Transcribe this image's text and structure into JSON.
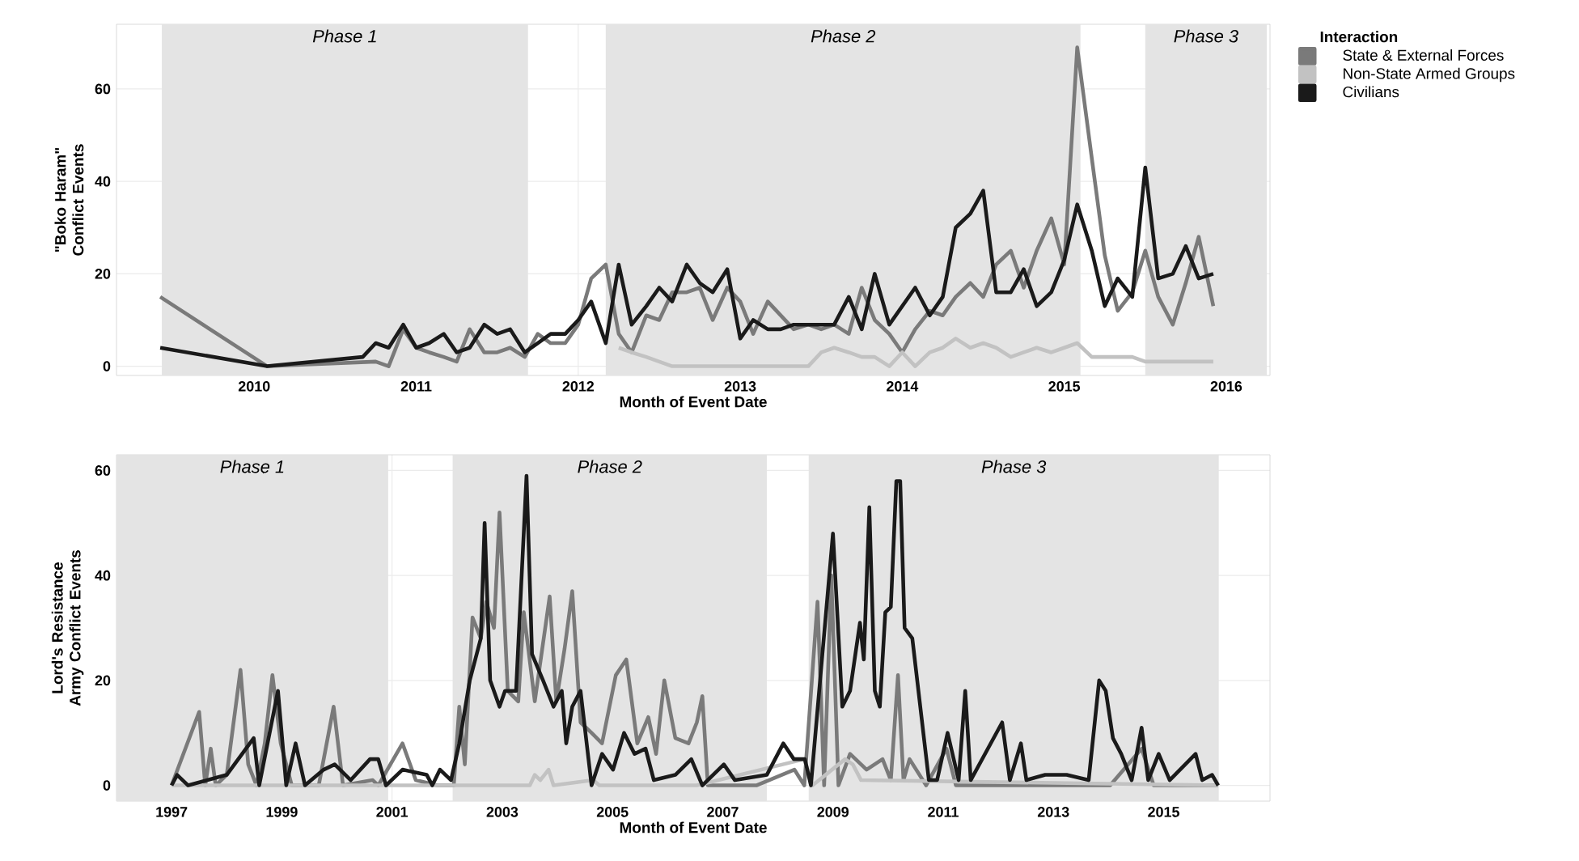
{
  "chart_data": [
    {
      "type": "line",
      "xlabel": "Month of Event Date",
      "ylabel": "\"Boko Haram\" Conflict Events",
      "legend_title": "Interaction",
      "legend": "right",
      "grid": true,
      "xlim": [
        2009.15,
        2016.27
      ],
      "ylim": [
        -2,
        74
      ],
      "xticks": [
        2010,
        2011,
        2012,
        2013,
        2014,
        2015,
        2016
      ],
      "yticks": [
        0,
        20,
        40,
        60
      ],
      "bands": [
        {
          "axis": "x",
          "from": 2009.43,
          "to": 2011.69,
          "label": "Phase 1",
          "color": "#e4e4e4"
        },
        {
          "axis": "x",
          "from": 2012.17,
          "to": 2015.1,
          "label": "Phase 2",
          "color": "#e4e4e4"
        },
        {
          "axis": "x",
          "from": 2015.5,
          "to": 2016.25,
          "label": "Phase 3",
          "color": "#e4e4e4"
        }
      ],
      "series": [
        {
          "name": "State & External Forces",
          "color": "#7a7a7a",
          "x": [
            2009.42,
            2010.08,
            2010.75,
            2010.83,
            2010.92,
            2011.0,
            2011.08,
            2011.17,
            2011.25,
            2011.33,
            2011.42,
            2011.5,
            2011.58,
            2011.67,
            2011.75,
            2011.83,
            2011.92,
            2012.0,
            2012.08,
            2012.17,
            2012.25,
            2012.33,
            2012.42,
            2012.5,
            2012.58,
            2012.67,
            2012.75,
            2012.83,
            2012.92,
            2013.0,
            2013.08,
            2013.17,
            2013.25,
            2013.33,
            2013.42,
            2013.5,
            2013.58,
            2013.67,
            2013.75,
            2013.83,
            2013.92,
            2014.0,
            2014.08,
            2014.17,
            2014.25,
            2014.33,
            2014.42,
            2014.5,
            2014.58,
            2014.67,
            2014.75,
            2014.83,
            2014.92,
            2015.0,
            2015.08,
            2015.17,
            2015.25,
            2015.33,
            2015.42,
            2015.5,
            2015.58,
            2015.67,
            2015.75,
            2015.83,
            2015.92
          ],
          "values": [
            15,
            0,
            1,
            0,
            8,
            4,
            3,
            2,
            1,
            8,
            3,
            3,
            4,
            2,
            7,
            5,
            5,
            9,
            19,
            22,
            7,
            3,
            11,
            10,
            16,
            16,
            17,
            10,
            17,
            14,
            7,
            14,
            11,
            8,
            9,
            8,
            9,
            7,
            17,
            10,
            7,
            3,
            8,
            12,
            11,
            15,
            18,
            15,
            22,
            25,
            17,
            25,
            32,
            22,
            69,
            45,
            24,
            12,
            16,
            25,
            15,
            9,
            18,
            28,
            13
          ]
        },
        {
          "name": "Non-State Armed Groups",
          "color": "#c2c2c2",
          "x": [
            2012.25,
            2012.33,
            2012.42,
            2012.58,
            2013.42,
            2013.5,
            2013.58,
            2013.67,
            2013.75,
            2013.83,
            2013.92,
            2014.0,
            2014.08,
            2014.17,
            2014.25,
            2014.33,
            2014.42,
            2014.5,
            2014.58,
            2014.67,
            2014.75,
            2014.83,
            2014.92,
            2015.0,
            2015.08,
            2015.17,
            2015.42,
            2015.5,
            2015.92
          ],
          "values": [
            4,
            3,
            2,
            0,
            0,
            3,
            4,
            3,
            2,
            2,
            0,
            3,
            0,
            3,
            4,
            6,
            4,
            5,
            4,
            2,
            3,
            4,
            3,
            4,
            5,
            2,
            2,
            1,
            1
          ]
        },
        {
          "name": "Civilians",
          "color": "#1a1a1a",
          "x": [
            2009.42,
            2010.08,
            2010.67,
            2010.75,
            2010.83,
            2010.92,
            2011.0,
            2011.08,
            2011.17,
            2011.25,
            2011.33,
            2011.42,
            2011.5,
            2011.58,
            2011.67,
            2011.75,
            2011.83,
            2011.92,
            2012.0,
            2012.08,
            2012.17,
            2012.25,
            2012.33,
            2012.42,
            2012.5,
            2012.58,
            2012.67,
            2012.75,
            2012.83,
            2012.92,
            2013.0,
            2013.08,
            2013.17,
            2013.25,
            2013.33,
            2013.42,
            2013.5,
            2013.58,
            2013.67,
            2013.75,
            2013.83,
            2013.92,
            2014.0,
            2014.08,
            2014.17,
            2014.25,
            2014.33,
            2014.42,
            2014.5,
            2014.58,
            2014.67,
            2014.75,
            2014.83,
            2014.92,
            2015.0,
            2015.08,
            2015.17,
            2015.25,
            2015.33,
            2015.42,
            2015.5,
            2015.58,
            2015.67,
            2015.75,
            2015.83,
            2015.92
          ],
          "values": [
            4,
            0,
            2,
            5,
            4,
            9,
            4,
            5,
            7,
            3,
            4,
            9,
            7,
            8,
            3,
            5,
            7,
            7,
            10,
            14,
            5,
            22,
            9,
            13,
            17,
            14,
            22,
            18,
            16,
            21,
            6,
            10,
            8,
            8,
            9,
            9,
            9,
            9,
            15,
            8,
            20,
            9,
            13,
            17,
            11,
            15,
            30,
            33,
            38,
            16,
            16,
            21,
            13,
            16,
            23,
            35,
            25,
            13,
            19,
            15,
            43,
            19,
            20,
            26,
            19,
            20
          ]
        }
      ]
    },
    {
      "type": "line",
      "xlabel": "Month of Event Date",
      "ylabel": "Lord's Resistance Army Conflict Events",
      "grid": true,
      "xlim": [
        1996.0,
        2016.93
      ],
      "ylim": [
        -3,
        63
      ],
      "xticks": [
        1997,
        1999,
        2001,
        2003,
        2005,
        2007,
        2009,
        2011,
        2013,
        2015
      ],
      "yticks": [
        0,
        20,
        40,
        60
      ],
      "bands": [
        {
          "axis": "x",
          "from": 1996.0,
          "to": 2000.93,
          "label": "Phase 1",
          "color": "#e4e4e4"
        },
        {
          "axis": "x",
          "from": 2002.1,
          "to": 2007.8,
          "label": "Phase 2",
          "color": "#e4e4e4"
        },
        {
          "axis": "x",
          "from": 2008.56,
          "to": 2016.0,
          "label": "Phase 3",
          "color": "#e4e4e4"
        }
      ],
      "series": [
        {
          "color": "#7a7a7a",
          "x": [
            1997.0,
            1997.5,
            1997.61,
            1997.71,
            1997.8,
            1998.0,
            1998.25,
            1998.39,
            1998.54,
            1998.69,
            1998.83,
            1998.98,
            1999.18,
            1999.67,
            1999.94,
            2000.11,
            2000.65,
            2000.75,
            2001.19,
            2001.43,
            2001.82,
            2002.12,
            2002.22,
            2002.32,
            2002.46,
            2002.61,
            2002.71,
            2002.85,
            2002.95,
            2003.1,
            2003.29,
            2003.39,
            2003.59,
            2003.86,
            2003.98,
            2004.13,
            2004.27,
            2004.42,
            2004.62,
            2004.81,
            2005.06,
            2005.25,
            2005.45,
            2005.65,
            2005.79,
            2005.94,
            2006.14,
            2006.38,
            2006.53,
            2006.63,
            2006.73,
            2007.61,
            2008.3,
            2008.48,
            2008.72,
            2008.84,
            2008.97,
            2009.1,
            2009.31,
            2009.61,
            2009.9,
            2010.05,
            2010.18,
            2010.28,
            2010.39,
            2010.69,
            2011.06,
            2011.23,
            2014.03,
            2014.6,
            2014.82,
            2015.99
          ],
          "values": [
            0,
            14,
            0,
            7,
            0,
            2,
            22,
            4,
            0,
            8,
            21,
            8,
            0,
            0,
            15,
            0,
            1,
            0,
            8,
            1,
            0,
            0,
            15,
            4,
            32,
            28,
            35,
            30,
            52,
            18,
            16,
            33,
            16,
            36,
            16,
            26,
            37,
            12,
            10,
            8,
            21,
            24,
            8,
            13,
            6,
            20,
            9,
            8,
            12,
            17,
            0,
            0,
            3,
            0,
            35,
            0,
            40,
            0,
            6,
            3,
            5,
            1,
            21,
            1,
            5,
            0,
            7,
            0,
            0,
            7,
            0,
            0
          ]
        },
        {
          "color": "#c2c2c2",
          "x": [
            1997.0,
            2003.5,
            2003.59,
            2003.69,
            2003.84,
            2003.93,
            2004.65,
            2004.76,
            2006.53,
            2008.48,
            2008.63,
            2009.22,
            2009.36,
            2009.51,
            2015.99
          ],
          "values": [
            0,
            0,
            2,
            1,
            3,
            0,
            1,
            0,
            0,
            5,
            0,
            5,
            4,
            1,
            0
          ]
        },
        {
          "color": "#1a1a1a",
          "x": [
            1997.0,
            1997.1,
            1997.3,
            1998.0,
            1998.49,
            1998.59,
            1998.93,
            1999.08,
            1999.25,
            1999.42,
            1999.76,
            1999.96,
            2000.25,
            2000.6,
            2000.75,
            2000.89,
            2001.19,
            2001.63,
            2001.73,
            2001.87,
            2002.07,
            2002.22,
            2002.41,
            2002.61,
            2002.68,
            2002.78,
            2002.95,
            2003.05,
            2003.25,
            2003.44,
            2003.54,
            2003.74,
            2003.93,
            2004.08,
            2004.16,
            2004.27,
            2004.42,
            2004.62,
            2004.81,
            2005.01,
            2005.21,
            2005.4,
            2005.6,
            2005.75,
            2006.14,
            2006.43,
            2006.63,
            2007.02,
            2007.22,
            2007.8,
            2008.1,
            2008.29,
            2008.49,
            2008.6,
            2009.0,
            2009.17,
            2009.31,
            2009.49,
            2009.56,
            2009.66,
            2009.76,
            2009.85,
            2009.95,
            2010.05,
            2010.15,
            2010.22,
            2010.3,
            2010.44,
            2010.64,
            2010.74,
            2010.89,
            2011.08,
            2011.28,
            2011.4,
            2011.5,
            2012.07,
            2012.21,
            2012.41,
            2012.51,
            2012.85,
            2013.24,
            2013.64,
            2013.83,
            2013.95,
            2014.08,
            2014.23,
            2014.42,
            2014.6,
            2014.72,
            2014.91,
            2015.11,
            2015.58,
            2015.7,
            2015.88,
            2015.99
          ],
          "values": [
            0,
            2,
            0,
            2,
            9,
            0,
            18,
            0,
            8,
            0,
            3,
            4,
            1,
            5,
            5,
            0,
            3,
            2,
            0,
            3,
            1,
            8,
            20,
            28,
            50,
            20,
            15,
            18,
            18,
            59,
            25,
            20,
            15,
            18,
            8,
            15,
            18,
            0,
            6,
            3,
            10,
            6,
            7,
            1,
            2,
            5,
            0,
            4,
            1,
            2,
            8,
            5,
            5,
            0,
            48,
            15,
            18,
            31,
            24,
            53,
            18,
            15,
            33,
            34,
            58,
            58,
            30,
            28,
            10,
            1,
            1,
            10,
            1,
            18,
            1,
            12,
            1,
            8,
            1,
            2,
            2,
            1,
            20,
            18,
            9,
            6,
            1,
            11,
            1,
            6,
            1,
            6,
            1,
            2,
            0
          ]
        }
      ]
    }
  ]
}
